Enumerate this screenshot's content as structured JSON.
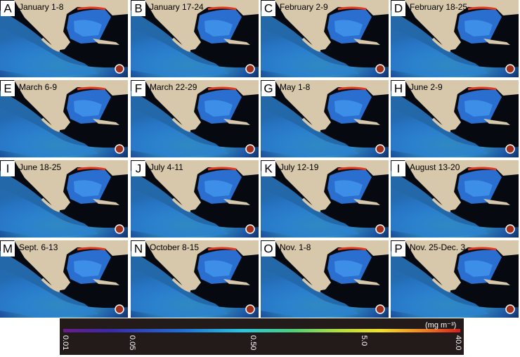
{
  "panels": [
    {
      "letter": "A",
      "date": "January 1-8"
    },
    {
      "letter": "B",
      "date": "January 17-24"
    },
    {
      "letter": "C",
      "date": "February 2-9"
    },
    {
      "letter": "D",
      "date": "February 18-25"
    },
    {
      "letter": "E",
      "date": "March 6-9"
    },
    {
      "letter": "F",
      "date": "March 22-29"
    },
    {
      "letter": "G",
      "date": "May 1-8"
    },
    {
      "letter": "H",
      "date": "June 2-9"
    },
    {
      "letter": "I",
      "date": "June 18-25"
    },
    {
      "letter": "J",
      "date": "July  4-11"
    },
    {
      "letter": "K",
      "date": "July 12-19"
    },
    {
      "letter": "I",
      "date": "August 13-20"
    },
    {
      "letter": "M",
      "date": "Sept. 6-13"
    },
    {
      "letter": "N",
      "date": "October 8-15"
    },
    {
      "letter": "O",
      "date": "Nov. 1-8"
    },
    {
      "letter": "P",
      "date": "Nov. 25-Dec. 3"
    }
  ],
  "colorbar": {
    "unit": "(mg m⁻³)",
    "ticks": [
      "0.01",
      "0.05",
      "0.50",
      "5.0",
      "40.0"
    ]
  }
}
